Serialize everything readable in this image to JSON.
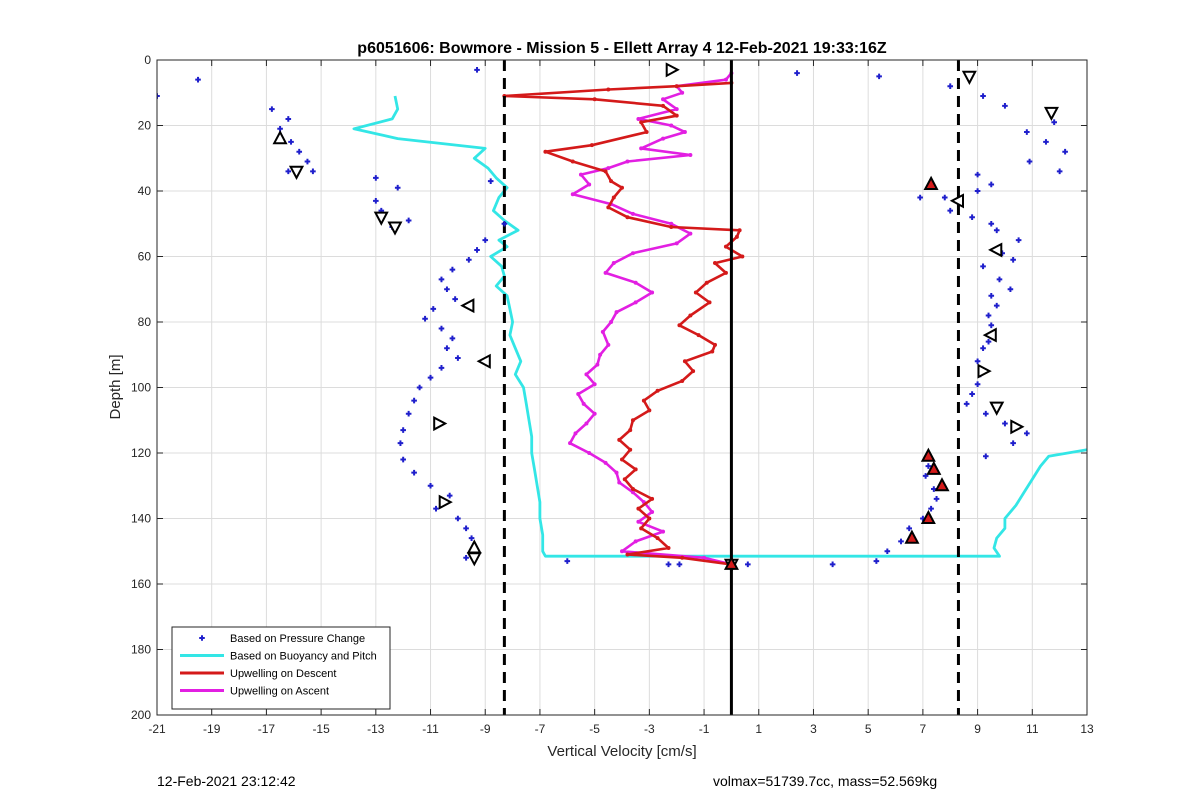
{
  "footer": {
    "timestamp": "12-Feb-2021 23:12:42",
    "summary": "volmax=51739.7cc, mass=52.569kg"
  },
  "colors": {
    "pressure": "#1f1fcc",
    "buoyancy": "#33e6e6",
    "descent": "#d41a1a",
    "ascent": "#e21fe2",
    "reference": "#000000"
  },
  "chart_data": {
    "type": "line",
    "title": "p6051606: Bowmore - Mission 5 - Ellett Array 4 12-Feb-2021 19:33:16Z",
    "xlabel": "Vertical Velocity [cm/s]",
    "ylabel": "Depth [m]",
    "xlim": [
      -21,
      13
    ],
    "ylim": [
      0,
      200
    ],
    "y_reversed": true,
    "xticks": [
      -21,
      -19,
      -17,
      -15,
      -13,
      -11,
      -9,
      -7,
      -5,
      -3,
      -1,
      1,
      3,
      5,
      7,
      9,
      11,
      13
    ],
    "yticks": [
      0,
      20,
      40,
      60,
      80,
      100,
      120,
      140,
      160,
      180,
      200
    ],
    "grid": true,
    "legend_position": "bottom-left",
    "reference_lines": [
      {
        "x": 0,
        "style": "solid"
      },
      {
        "x": -8.3,
        "style": "dashed"
      },
      {
        "x": 8.3,
        "style": "dashed"
      }
    ],
    "series": [
      {
        "name": "Based on Pressure Change",
        "kind": "scatter",
        "points": [
          [
            -21.0,
            11
          ],
          [
            -19.5,
            6
          ],
          [
            -16.8,
            15
          ],
          [
            -16.2,
            18
          ],
          [
            -16.5,
            21
          ],
          [
            -16.1,
            25
          ],
          [
            -15.8,
            28
          ],
          [
            -15.5,
            31
          ],
          [
            -15.3,
            34
          ],
          [
            -16.2,
            34
          ],
          [
            -13.0,
            36
          ],
          [
            -12.2,
            39
          ],
          [
            -13.0,
            43
          ],
          [
            -12.8,
            46
          ],
          [
            -11.8,
            49
          ],
          [
            -12.4,
            51
          ],
          [
            -9.3,
            3
          ],
          [
            -8.8,
            37
          ],
          [
            -8.3,
            50
          ],
          [
            -9.0,
            55
          ],
          [
            -9.3,
            58
          ],
          [
            -9.6,
            61
          ],
          [
            -10.2,
            64
          ],
          [
            -10.6,
            67
          ],
          [
            -10.4,
            70
          ],
          [
            -10.1,
            73
          ],
          [
            -10.9,
            76
          ],
          [
            -11.2,
            79
          ],
          [
            -10.6,
            82
          ],
          [
            -10.2,
            85
          ],
          [
            -10.4,
            88
          ],
          [
            -10.0,
            91
          ],
          [
            -10.6,
            94
          ],
          [
            -11.0,
            97
          ],
          [
            -11.4,
            100
          ],
          [
            -11.6,
            104
          ],
          [
            -11.8,
            108
          ],
          [
            -12.0,
            113
          ],
          [
            -12.1,
            117
          ],
          [
            -12.0,
            122
          ],
          [
            -11.6,
            126
          ],
          [
            -11.0,
            130
          ],
          [
            -10.3,
            133
          ],
          [
            -10.8,
            137
          ],
          [
            -10.0,
            140
          ],
          [
            -9.7,
            143
          ],
          [
            -9.5,
            146
          ],
          [
            -9.4,
            149
          ],
          [
            -9.7,
            152
          ],
          [
            -6.0,
            153
          ],
          [
            -2.3,
            154
          ],
          [
            -1.9,
            154
          ],
          [
            0.6,
            154
          ],
          [
            2.4,
            4
          ],
          [
            5.4,
            5
          ],
          [
            8.0,
            8
          ],
          [
            9.2,
            11
          ],
          [
            10.0,
            14
          ],
          [
            11.8,
            19
          ],
          [
            10.8,
            22
          ],
          [
            11.5,
            25
          ],
          [
            12.2,
            28
          ],
          [
            10.9,
            31
          ],
          [
            12.0,
            34
          ],
          [
            9.0,
            35
          ],
          [
            9.5,
            38
          ],
          [
            9.0,
            40
          ],
          [
            7.8,
            42
          ],
          [
            6.9,
            42
          ],
          [
            8.0,
            46
          ],
          [
            8.8,
            48
          ],
          [
            9.5,
            50
          ],
          [
            9.7,
            52
          ],
          [
            10.5,
            55
          ],
          [
            9.9,
            59
          ],
          [
            10.3,
            61
          ],
          [
            9.2,
            63
          ],
          [
            9.8,
            67
          ],
          [
            10.2,
            70
          ],
          [
            9.5,
            72
          ],
          [
            9.7,
            75
          ],
          [
            9.4,
            78
          ],
          [
            9.5,
            81
          ],
          [
            9.4,
            86
          ],
          [
            9.2,
            88
          ],
          [
            9.0,
            92
          ],
          [
            9.1,
            96
          ],
          [
            9.0,
            99
          ],
          [
            8.8,
            102
          ],
          [
            8.6,
            105
          ],
          [
            9.3,
            108
          ],
          [
            10.0,
            111
          ],
          [
            10.8,
            114
          ],
          [
            10.3,
            117
          ],
          [
            9.3,
            121
          ],
          [
            7.2,
            124
          ],
          [
            7.1,
            127
          ],
          [
            7.4,
            131
          ],
          [
            7.5,
            134
          ],
          [
            7.3,
            137
          ],
          [
            7.0,
            140
          ],
          [
            6.5,
            143
          ],
          [
            6.2,
            147
          ],
          [
            5.7,
            150
          ],
          [
            5.3,
            153
          ],
          [
            3.7,
            154
          ]
        ]
      },
      {
        "name": "Based on Buoyancy and Pitch",
        "kind": "line",
        "points": [
          [
            -12.3,
            11
          ],
          [
            -12.2,
            15
          ],
          [
            -12.4,
            18
          ],
          [
            -13.8,
            21
          ],
          [
            -12.2,
            24
          ],
          [
            -9.0,
            27
          ],
          [
            -9.4,
            30
          ],
          [
            -8.9,
            33
          ],
          [
            -8.6,
            36
          ],
          [
            -8.2,
            39
          ],
          [
            -8.5,
            42
          ],
          [
            -8.7,
            46
          ],
          [
            -8.3,
            49
          ],
          [
            -7.8,
            52
          ],
          [
            -8.5,
            55
          ],
          [
            -8.2,
            57
          ],
          [
            -8.8,
            60
          ],
          [
            -8.4,
            63
          ],
          [
            -8.3,
            66
          ],
          [
            -8.6,
            69
          ],
          [
            -8.2,
            72
          ],
          [
            -8.1,
            76
          ],
          [
            -8.0,
            80
          ],
          [
            -8.1,
            84
          ],
          [
            -7.9,
            88
          ],
          [
            -7.7,
            92
          ],
          [
            -7.9,
            96
          ],
          [
            -7.6,
            100
          ],
          [
            -7.5,
            105
          ],
          [
            -7.4,
            110
          ],
          [
            -7.3,
            115
          ],
          [
            -7.3,
            120
          ],
          [
            -7.2,
            125
          ],
          [
            -7.1,
            130
          ],
          [
            -7.0,
            135
          ],
          [
            -7.0,
            140
          ],
          [
            -6.9,
            145
          ],
          [
            -6.9,
            150
          ],
          [
            -6.8,
            151.5
          ],
          [
            9.8,
            151.5
          ],
          [
            9.6,
            149
          ],
          [
            9.7,
            146
          ],
          [
            10.0,
            143
          ],
          [
            10.0,
            140
          ],
          [
            10.4,
            136
          ],
          [
            10.7,
            132
          ],
          [
            11.0,
            128
          ],
          [
            11.3,
            124
          ],
          [
            11.6,
            121
          ],
          [
            13.0,
            119
          ]
        ]
      },
      {
        "name": "Upwelling on Descent",
        "kind": "line",
        "points": [
          [
            0.0,
            7
          ],
          [
            -2.0,
            8
          ],
          [
            -4.5,
            9
          ],
          [
            -8.3,
            11
          ],
          [
            -5.0,
            12
          ],
          [
            -2.5,
            14
          ],
          [
            -2.0,
            17
          ],
          [
            -3.3,
            19
          ],
          [
            -3.1,
            22
          ],
          [
            -5.1,
            26
          ],
          [
            -6.8,
            28
          ],
          [
            -5.8,
            31
          ],
          [
            -4.6,
            34
          ],
          [
            -4.4,
            37
          ],
          [
            -4.0,
            39
          ],
          [
            -4.3,
            42
          ],
          [
            -4.5,
            45
          ],
          [
            -3.8,
            48
          ],
          [
            -2.2,
            51
          ],
          [
            0.3,
            52
          ],
          [
            0.2,
            54
          ],
          [
            -0.2,
            57
          ],
          [
            0.4,
            60
          ],
          [
            -0.6,
            62
          ],
          [
            -0.2,
            65
          ],
          [
            -0.9,
            68
          ],
          [
            -1.3,
            71
          ],
          [
            -0.8,
            74
          ],
          [
            -1.5,
            78
          ],
          [
            -1.9,
            81
          ],
          [
            -1.2,
            84
          ],
          [
            -0.6,
            87
          ],
          [
            -0.7,
            89
          ],
          [
            -1.7,
            92
          ],
          [
            -1.4,
            95
          ],
          [
            -1.8,
            98
          ],
          [
            -2.7,
            101
          ],
          [
            -3.2,
            104
          ],
          [
            -3.0,
            107
          ],
          [
            -3.6,
            110
          ],
          [
            -3.7,
            113
          ],
          [
            -4.1,
            116
          ],
          [
            -3.7,
            119
          ],
          [
            -4.0,
            122
          ],
          [
            -3.5,
            125
          ],
          [
            -3.9,
            128
          ],
          [
            -3.6,
            131
          ],
          [
            -2.9,
            134
          ],
          [
            -3.4,
            137
          ],
          [
            -3.0,
            140
          ],
          [
            -3.3,
            143
          ],
          [
            -2.7,
            146
          ],
          [
            -2.3,
            149
          ],
          [
            -3.8,
            151
          ],
          [
            -1.8,
            152
          ],
          [
            0.0,
            154
          ]
        ]
      },
      {
        "name": "Upwelling on Ascent",
        "kind": "line",
        "points": [
          [
            0.0,
            4
          ],
          [
            -0.2,
            6
          ],
          [
            -2.0,
            8
          ],
          [
            -1.8,
            10
          ],
          [
            -2.5,
            12
          ],
          [
            -2.0,
            15
          ],
          [
            -3.4,
            18
          ],
          [
            -2.2,
            20
          ],
          [
            -1.7,
            22
          ],
          [
            -2.5,
            24
          ],
          [
            -3.3,
            27
          ],
          [
            -1.5,
            29
          ],
          [
            -3.8,
            31
          ],
          [
            -4.5,
            33
          ],
          [
            -5.5,
            35
          ],
          [
            -5.2,
            38
          ],
          [
            -5.8,
            41
          ],
          [
            -4.4,
            44
          ],
          [
            -3.6,
            47
          ],
          [
            -2.2,
            50
          ],
          [
            -1.5,
            53
          ],
          [
            -2.0,
            56
          ],
          [
            -3.6,
            59
          ],
          [
            -4.3,
            62
          ],
          [
            -4.6,
            65
          ],
          [
            -3.5,
            68
          ],
          [
            -2.9,
            71
          ],
          [
            -3.5,
            74
          ],
          [
            -4.2,
            77
          ],
          [
            -4.4,
            80
          ],
          [
            -4.7,
            83
          ],
          [
            -4.5,
            87
          ],
          [
            -4.8,
            90
          ],
          [
            -4.9,
            93
          ],
          [
            -5.3,
            96
          ],
          [
            -5.0,
            99
          ],
          [
            -5.6,
            102
          ],
          [
            -5.4,
            105
          ],
          [
            -5.0,
            108
          ],
          [
            -5.3,
            111
          ],
          [
            -5.7,
            114
          ],
          [
            -5.9,
            117
          ],
          [
            -5.2,
            120
          ],
          [
            -4.6,
            123
          ],
          [
            -4.2,
            126
          ],
          [
            -4.1,
            129
          ],
          [
            -3.6,
            132
          ],
          [
            -3.2,
            135
          ],
          [
            -2.9,
            138
          ],
          [
            -3.4,
            141
          ],
          [
            -2.5,
            144
          ],
          [
            -3.5,
            147
          ],
          [
            -4.0,
            150
          ],
          [
            -1.0,
            152
          ],
          [
            0.0,
            154
          ]
        ]
      },
      {
        "name": "Triangle markers (hollow)",
        "kind": "markers",
        "legend": false,
        "points": [
          [
            -2.2,
            3,
            "right"
          ],
          [
            8.7,
            5,
            "down"
          ],
          [
            11.7,
            16,
            "down"
          ],
          [
            -16.5,
            24,
            "up"
          ],
          [
            -15.9,
            34,
            "down"
          ],
          [
            8.3,
            43,
            "left"
          ],
          [
            -12.8,
            48,
            "down"
          ],
          [
            -12.3,
            51,
            "down"
          ],
          [
            9.7,
            58,
            "left"
          ],
          [
            -9.6,
            75,
            "left"
          ],
          [
            9.5,
            84,
            "left"
          ],
          [
            -9.0,
            92,
            "left"
          ],
          [
            9.2,
            95,
            "right"
          ],
          [
            9.7,
            106,
            "down"
          ],
          [
            -10.7,
            111,
            "right"
          ],
          [
            10.4,
            112,
            "right"
          ],
          [
            -10.5,
            135,
            "right"
          ],
          [
            -9.4,
            149,
            "up"
          ],
          [
            -9.4,
            152,
            "down"
          ],
          [
            0.0,
            154,
            "down"
          ]
        ]
      },
      {
        "name": "Triangle markers (filled)",
        "kind": "markers",
        "legend": false,
        "points": [
          [
            7.3,
            38,
            "up"
          ],
          [
            7.2,
            121,
            "up"
          ],
          [
            7.4,
            125,
            "up"
          ],
          [
            7.7,
            130,
            "up"
          ],
          [
            7.2,
            140,
            "up"
          ],
          [
            6.6,
            146,
            "up"
          ],
          [
            0.0,
            154,
            "up"
          ]
        ]
      }
    ]
  }
}
